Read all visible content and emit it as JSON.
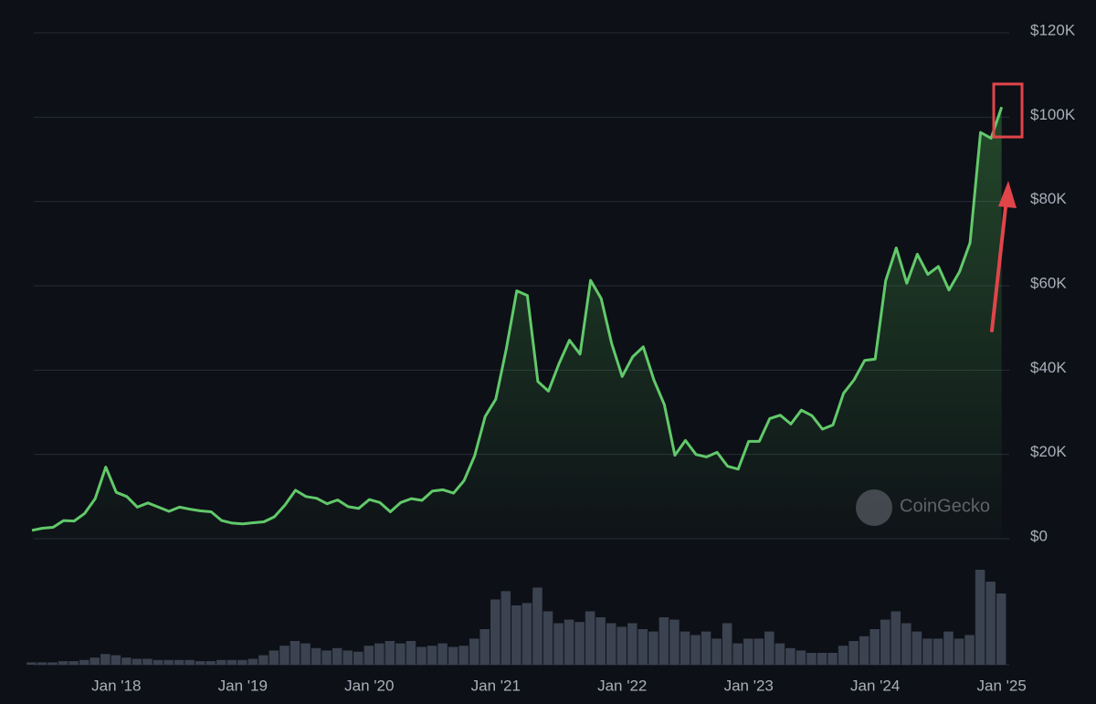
{
  "chart_data": {
    "type": "line",
    "watermark": "CoinGecko",
    "x": [
      "2017-05",
      "2017-06",
      "2017-07",
      "2017-08",
      "2017-09",
      "2017-10",
      "2017-11",
      "2017-12",
      "2018-01",
      "2018-02",
      "2018-03",
      "2018-04",
      "2018-05",
      "2018-06",
      "2018-07",
      "2018-08",
      "2018-09",
      "2018-10",
      "2018-11",
      "2018-12",
      "2019-01",
      "2019-02",
      "2019-03",
      "2019-04",
      "2019-05",
      "2019-06",
      "2019-07",
      "2019-08",
      "2019-09",
      "2019-10",
      "2019-11",
      "2019-12",
      "2020-01",
      "2020-02",
      "2020-03",
      "2020-04",
      "2020-05",
      "2020-06",
      "2020-07",
      "2020-08",
      "2020-09",
      "2020-10",
      "2020-11",
      "2020-12",
      "2021-01",
      "2021-02",
      "2021-03",
      "2021-04",
      "2021-05",
      "2021-06",
      "2021-07",
      "2021-08",
      "2021-09",
      "2021-10",
      "2021-11",
      "2021-12",
      "2022-01",
      "2022-02",
      "2022-03",
      "2022-04",
      "2022-05",
      "2022-06",
      "2022-07",
      "2022-08",
      "2022-09",
      "2022-10",
      "2022-11",
      "2022-12",
      "2023-01",
      "2023-02",
      "2023-03",
      "2023-04",
      "2023-05",
      "2023-06",
      "2023-07",
      "2023-08",
      "2023-09",
      "2023-10",
      "2023-11",
      "2023-12",
      "2024-01",
      "2024-02",
      "2024-03",
      "2024-04",
      "2024-05",
      "2024-06",
      "2024-07",
      "2024-08",
      "2024-09",
      "2024-10",
      "2024-11",
      "2024-12",
      "2025-01"
    ],
    "series": [
      {
        "color": "#62c96b",
        "values": [
          2000,
          2500,
          2700,
          4300,
          4200,
          6000,
          9500,
          17000,
          11000,
          10000,
          7500,
          8500,
          7500,
          6500,
          7500,
          7000,
          6600,
          6400,
          4300,
          3700,
          3500,
          3800,
          4000,
          5200,
          8000,
          11500,
          10000,
          9600,
          8300,
          9200,
          7600,
          7200,
          9300,
          8600,
          6400,
          8600,
          9500,
          9100,
          11300,
          11600,
          10800,
          13800,
          19700,
          29000,
          33100,
          45000,
          58800,
          57700,
          37300,
          35000,
          41500,
          47100,
          43800,
          61300,
          57000,
          46300,
          38500,
          43200,
          45500,
          37700,
          31800,
          19800,
          23300,
          20000,
          19400,
          20500,
          17200,
          16500,
          23100,
          23100,
          28500,
          29300,
          27200,
          30500,
          29200,
          26000,
          27000,
          34500,
          37700,
          42300,
          42600,
          61200,
          69000,
          60600,
          67500,
          62700,
          64600,
          59000,
          63300,
          70200,
          96400,
          95000,
          102400
        ]
      },
      {
        "color": "#3b4250",
        "axis": "y2",
        "values": [
          2,
          2,
          2,
          3,
          3,
          4,
          6,
          9,
          8,
          6,
          5,
          5,
          4,
          4,
          4,
          4,
          3,
          3,
          4,
          4,
          4,
          5,
          8,
          12,
          16,
          20,
          18,
          14,
          12,
          14,
          12,
          11,
          16,
          18,
          20,
          18,
          20,
          15,
          16,
          18,
          15,
          16,
          22,
          30,
          55,
          62,
          50,
          52,
          65,
          45,
          35,
          38,
          36,
          45,
          40,
          35,
          32,
          35,
          30,
          28,
          40,
          38,
          28,
          25,
          28,
          22,
          35,
          18,
          22,
          22,
          28,
          18,
          14,
          12,
          10,
          10,
          10,
          16,
          20,
          24,
          30,
          38,
          45,
          35,
          28,
          22,
          22,
          28,
          22,
          25,
          80,
          70,
          60
        ]
      }
    ],
    "ylim": [
      0,
      120000
    ],
    "y2lim": [
      0,
      100
    ],
    "yticks": [
      {
        "value": 0,
        "label": "$0"
      },
      {
        "value": 20000,
        "label": "$20K"
      },
      {
        "value": 40000,
        "label": "$40K"
      },
      {
        "value": 60000,
        "label": "$60K"
      },
      {
        "value": 80000,
        "label": "$80K"
      },
      {
        "value": 100000,
        "label": "$100K"
      },
      {
        "value": 120000,
        "label": "$120K"
      }
    ],
    "xticks": [
      {
        "value": "2018-01",
        "label": "Jan '18"
      },
      {
        "value": "2019-01",
        "label": "Jan '19"
      },
      {
        "value": "2020-01",
        "label": "Jan '20"
      },
      {
        "value": "2021-01",
        "label": "Jan '21"
      },
      {
        "value": "2022-01",
        "label": "Jan '22"
      },
      {
        "value": "2023-01",
        "label": "Jan '23"
      },
      {
        "value": "2024-01",
        "label": "Jan '24"
      },
      {
        "value": "2025-01",
        "label": "Jan '25"
      }
    ],
    "grid": true
  }
}
